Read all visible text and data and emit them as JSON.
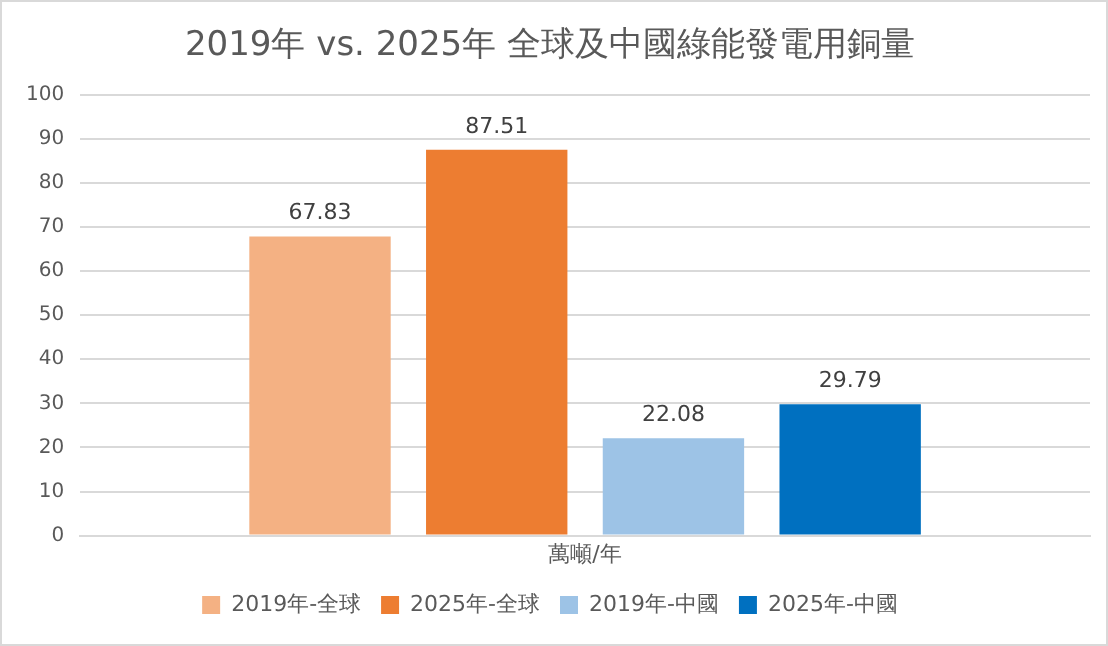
{
  "chart_data": {
    "type": "bar",
    "title": "2019年 vs. 2025年 全球及中國綠能發電用銅量",
    "categories": [
      "萬噸/年"
    ],
    "series": [
      {
        "name": "2019年-全球",
        "color": "#f4b183",
        "values": [
          67.83
        ]
      },
      {
        "name": "2025年-全球",
        "color": "#ed7d31",
        "values": [
          87.51
        ]
      },
      {
        "name": "2019年-中國",
        "color": "#9dc3e6",
        "values": [
          22.08
        ]
      },
      {
        "name": "2025年-中國",
        "color": "#0070c0",
        "values": [
          29.79
        ]
      }
    ],
    "ylim": [
      0,
      100
    ],
    "yticks": [
      0,
      10,
      20,
      30,
      40,
      50,
      60,
      70,
      80,
      90,
      100
    ],
    "grid": "y",
    "legend": "bottom",
    "data_labels": true
  }
}
